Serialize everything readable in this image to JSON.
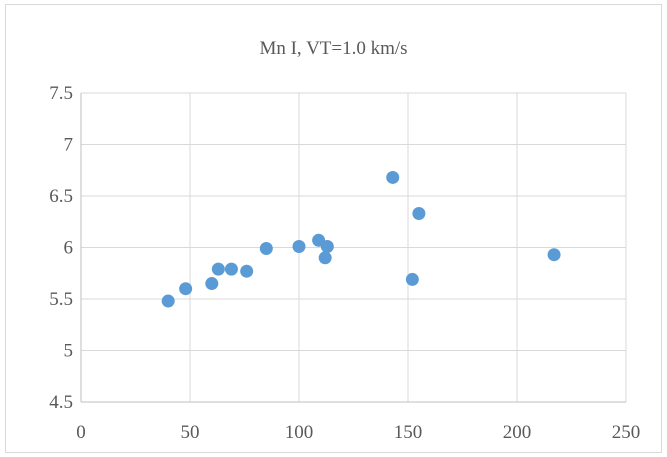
{
  "chart_data": {
    "type": "scatter",
    "title": "Mn I, VT=1.0 km/s",
    "xlabel": "",
    "ylabel": "",
    "xlim": [
      0,
      250
    ],
    "ylim": [
      4.5,
      7.5
    ],
    "x_ticks": [
      "0",
      "50",
      "100",
      "150",
      "200",
      "250"
    ],
    "y_ticks": [
      "4.5",
      "5",
      "5.5",
      "6",
      "6.5",
      "7",
      "7.5"
    ],
    "grid": true,
    "legend": "none",
    "series": [
      {
        "color": "#5b9bd5",
        "points": [
          {
            "x": 40,
            "y": 5.48
          },
          {
            "x": 48,
            "y": 5.6
          },
          {
            "x": 60,
            "y": 5.65
          },
          {
            "x": 63,
            "y": 5.79
          },
          {
            "x": 69,
            "y": 5.79
          },
          {
            "x": 76,
            "y": 5.77
          },
          {
            "x": 85,
            "y": 5.99
          },
          {
            "x": 100,
            "y": 6.01
          },
          {
            "x": 109,
            "y": 6.07
          },
          {
            "x": 112,
            "y": 5.9
          },
          {
            "x": 113,
            "y": 6.01
          },
          {
            "x": 143,
            "y": 6.68
          },
          {
            "x": 152,
            "y": 5.69
          },
          {
            "x": 155,
            "y": 6.33
          },
          {
            "x": 217,
            "y": 5.93
          }
        ]
      }
    ]
  }
}
